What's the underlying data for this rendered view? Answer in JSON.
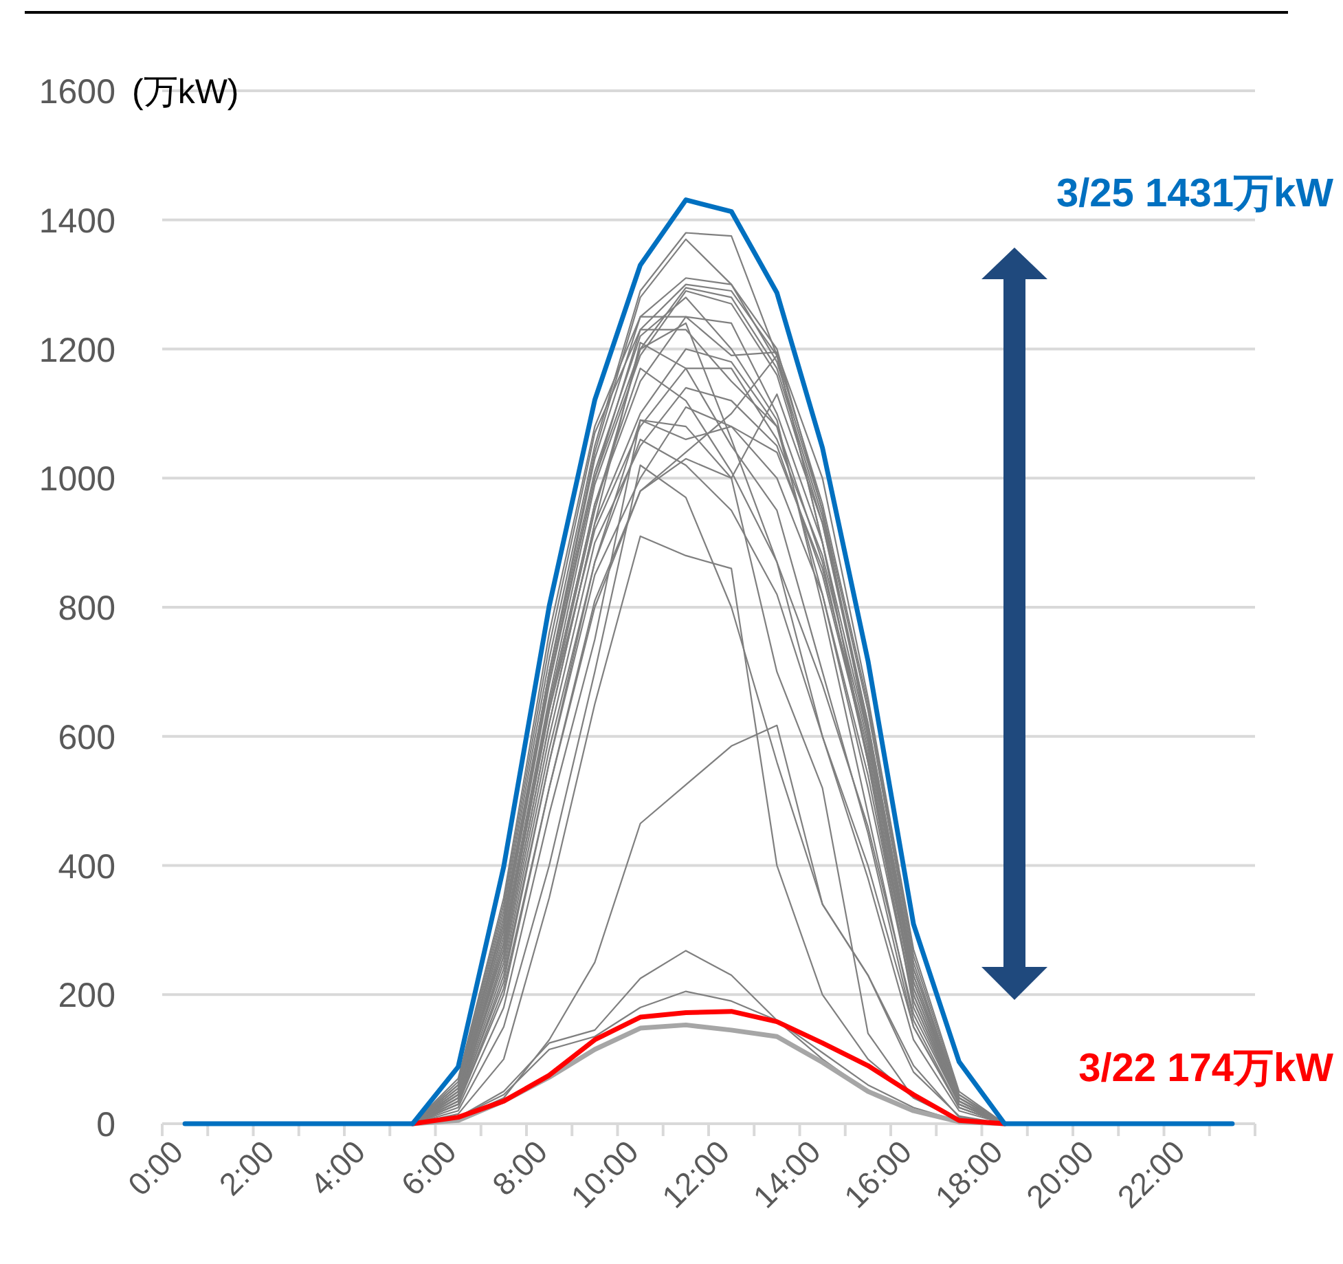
{
  "chart_data": {
    "type": "line",
    "ylabel": "(万kW)",
    "categories": [
      "0:00",
      null,
      "2:00",
      null,
      "4:00",
      null,
      "6:00",
      null,
      "8:00",
      null,
      "10:00",
      null,
      "12:00",
      null,
      "14:00",
      null,
      "16:00",
      null,
      "18:00",
      null,
      "20:00",
      null,
      "22:00",
      null
    ],
    "ylim": [
      0,
      1600
    ],
    "yticks": [
      0,
      200,
      400,
      600,
      800,
      1000,
      1200,
      1400,
      1600
    ],
    "grid": "y",
    "marker": "none",
    "line_style": "solid",
    "annotations": [
      "3/25  1431万kW",
      "3/22  174万kW"
    ],
    "series": [
      {
        "color": "#7f7f7f",
        "values": [
          null,
          null,
          null,
          null,
          null,
          0,
          60,
          330,
          720,
          1050,
          1290,
          1380,
          1375,
          1190,
          900,
          560,
          180,
          30,
          0,
          null,
          null,
          null,
          null,
          null
        ]
      },
      {
        "color": "#7f7f7f",
        "values": [
          null,
          null,
          null,
          null,
          null,
          0,
          55,
          320,
          700,
          1040,
          1280,
          1370,
          1300,
          1200,
          950,
          600,
          220,
          35,
          0,
          null,
          null,
          null,
          null,
          null
        ]
      },
      {
        "color": "#7f7f7f",
        "values": [
          null,
          null,
          null,
          null,
          null,
          0,
          70,
          350,
          760,
          1080,
          1250,
          1310,
          1300,
          1180,
          950,
          640,
          250,
          40,
          0,
          null,
          null,
          null,
          null,
          null
        ]
      },
      {
        "color": "#7f7f7f",
        "values": [
          null,
          null,
          null,
          null,
          null,
          0,
          65,
          340,
          740,
          1070,
          1230,
          1300,
          1290,
          1190,
          960,
          650,
          260,
          45,
          0,
          null,
          null,
          null,
          null,
          null
        ]
      },
      {
        "color": "#7f7f7f",
        "values": [
          null,
          null,
          null,
          null,
          null,
          0,
          50,
          300,
          680,
          1000,
          1200,
          1295,
          1280,
          1170,
          940,
          620,
          240,
          40,
          0,
          null,
          null,
          null,
          null,
          null
        ]
      },
      {
        "color": "#7f7f7f",
        "values": [
          null,
          null,
          null,
          null,
          null,
          0,
          45,
          290,
          660,
          990,
          1190,
          1290,
          1270,
          1160,
          930,
          610,
          230,
          35,
          0,
          null,
          null,
          null,
          null,
          null
        ]
      },
      {
        "color": "#7f7f7f",
        "values": [
          null,
          null,
          null,
          null,
          null,
          0,
          60,
          310,
          700,
          1030,
          1250,
          1250,
          1190,
          1195,
          1000,
          660,
          270,
          50,
          0,
          null,
          null,
          null,
          null,
          null
        ]
      },
      {
        "color": "#7f7f7f",
        "values": [
          null,
          null,
          null,
          null,
          null,
          0,
          40,
          280,
          650,
          960,
          1150,
          1250,
          1240,
          1100,
          900,
          600,
          230,
          40,
          0,
          null,
          null,
          null,
          null,
          null
        ]
      },
      {
        "color": "#7f7f7f",
        "values": [
          null,
          null,
          null,
          null,
          null,
          0,
          35,
          260,
          620,
          930,
          1100,
          1200,
          1180,
          1080,
          870,
          560,
          210,
          35,
          0,
          null,
          null,
          null,
          null,
          null
        ]
      },
      {
        "color": "#7f7f7f",
        "values": [
          null,
          null,
          null,
          null,
          null,
          0,
          50,
          280,
          640,
          920,
          1080,
          1170,
          1170,
          1060,
          880,
          590,
          220,
          40,
          0,
          null,
          null,
          null,
          null,
          null
        ]
      },
      {
        "color": "#7f7f7f",
        "values": [
          null,
          null,
          null,
          null,
          null,
          0,
          40,
          250,
          600,
          900,
          1050,
          1140,
          1120,
          1050,
          850,
          570,
          200,
          35,
          0,
          null,
          null,
          null,
          null,
          null
        ]
      },
      {
        "color": "#7f7f7f",
        "values": [
          null,
          null,
          null,
          null,
          null,
          0,
          30,
          230,
          560,
          850,
          1000,
          1110,
          1080,
          1000,
          820,
          540,
          190,
          30,
          0,
          null,
          null,
          null,
          null,
          null
        ]
      },
      {
        "color": "#7f7f7f",
        "values": [
          null,
          null,
          null,
          null,
          null,
          0,
          45,
          270,
          640,
          950,
          1200,
          1240,
          1060,
          870,
          600,
          400,
          150,
          25,
          0,
          null,
          null,
          null,
          null,
          null
        ]
      },
      {
        "color": "#7f7f7f",
        "values": [
          null,
          null,
          null,
          null,
          null,
          0,
          35,
          240,
          580,
          870,
          1060,
          1020,
          950,
          820,
          600,
          380,
          130,
          20,
          0,
          null,
          null,
          null,
          null,
          null
        ]
      },
      {
        "color": "#7f7f7f",
        "values": [
          null,
          null,
          null,
          null,
          null,
          0,
          30,
          200,
          520,
          800,
          980,
          1040,
          1100,
          1190,
          900,
          560,
          200,
          30,
          0,
          null,
          null,
          null,
          null,
          null
        ]
      },
      {
        "color": "#7f7f7f",
        "values": [
          null,
          null,
          null,
          null,
          null,
          0,
          25,
          180,
          480,
          750,
          1090,
          1080,
          1000,
          700,
          520,
          140,
          40,
          8,
          0,
          null,
          null,
          null,
          null,
          null
        ]
      },
      {
        "color": "#7f7f7f",
        "values": [
          null,
          null,
          null,
          null,
          null,
          0,
          20,
          150,
          400,
          700,
          1020,
          970,
          800,
          560,
          340,
          230,
          80,
          12,
          0,
          null,
          null,
          null,
          null,
          null
        ]
      },
      {
        "color": "#7f7f7f",
        "values": [
          null,
          null,
          null,
          null,
          null,
          0,
          40,
          260,
          620,
          930,
          1210,
          1170,
          1050,
          950,
          700,
          450,
          150,
          25,
          0,
          null,
          null,
          null,
          null,
          null
        ]
      },
      {
        "color": "#7f7f7f",
        "values": [
          null,
          null,
          null,
          null,
          null,
          0,
          50,
          300,
          690,
          1000,
          1230,
          1230,
          1150,
          1080,
          820,
          520,
          190,
          30,
          0,
          null,
          null,
          null,
          null,
          null
        ]
      },
      {
        "color": "#7f7f7f",
        "values": [
          null,
          null,
          null,
          null,
          null,
          0,
          55,
          310,
          700,
          1010,
          1220,
          1280,
          1200,
          1090,
          800,
          480,
          160,
          25,
          0,
          null,
          null,
          null,
          null,
          null
        ]
      },
      {
        "color": "#7f7f7f",
        "values": [
          null,
          null,
          null,
          null,
          null,
          0,
          35,
          220,
          560,
          870,
          1090,
          1060,
          1080,
          1040,
          860,
          580,
          210,
          35,
          0,
          null,
          null,
          null,
          null,
          null
        ]
      },
      {
        "color": "#7f7f7f",
        "values": [
          null,
          null,
          null,
          null,
          null,
          0,
          45,
          270,
          650,
          960,
          1170,
          1120,
          1010,
          870,
          680,
          460,
          170,
          30,
          0,
          null,
          null,
          null,
          null,
          null
        ]
      },
      {
        "color": "#7f7f7f",
        "values": [
          null,
          null,
          null,
          null,
          null,
          0,
          30,
          210,
          520,
          810,
          980,
          1030,
          1000,
          1130,
          930,
          620,
          240,
          45,
          0,
          null,
          null,
          null,
          null,
          null
        ]
      },
      {
        "color": "#7f7f7f",
        "values": [
          null,
          null,
          null,
          null,
          null,
          0,
          10,
          50,
          125,
          145,
          225,
          268,
          230,
          160,
          100,
          50,
          20,
          3,
          0,
          null,
          null,
          null,
          null,
          null
        ]
      },
      {
        "color": "#7f7f7f",
        "values": [
          null,
          null,
          null,
          null,
          null,
          0,
          10,
          45,
          115,
          135,
          180,
          205,
          190,
          160,
          110,
          60,
          25,
          4,
          0,
          null,
          null,
          null,
          null,
          null
        ]
      },
      {
        "color": "#7f7f7f",
        "values": [
          null,
          null,
          null,
          null,
          null,
          0,
          8,
          40,
          130,
          250,
          465,
          525,
          585,
          617,
          340,
          230,
          90,
          10,
          0,
          null,
          null,
          null,
          null,
          null
        ]
      },
      {
        "color": "#7f7f7f",
        "values": [
          null,
          null,
          null,
          null,
          null,
          0,
          15,
          100,
          350,
          650,
          910,
          880,
          860,
          400,
          200,
          100,
          40,
          5,
          0,
          null,
          null,
          null,
          null,
          null
        ]
      },
      {
        "color": "#a6a6a6",
        "values": [
          null,
          null,
          null,
          null,
          null,
          0,
          5,
          35,
          72,
          115,
          148,
          153,
          145,
          135,
          95,
          50,
          20,
          3,
          0,
          null,
          null,
          null,
          null,
          null
        ]
      },
      {
        "color": "#ff0000",
        "values": [
          null,
          null,
          null,
          null,
          null,
          0,
          10,
          35,
          75,
          130,
          165,
          172,
          174,
          158,
          125,
          90,
          45,
          5,
          0,
          null,
          null,
          null,
          null,
          null
        ]
      },
      {
        "color": "#0070c0",
        "values": [
          0,
          0,
          0,
          0,
          0,
          0,
          88,
          398,
          802,
          1121,
          1330,
          1431,
          1413,
          1287,
          1047,
          717,
          309,
          96,
          0,
          0,
          0,
          0,
          0,
          0
        ]
      }
    ]
  }
}
